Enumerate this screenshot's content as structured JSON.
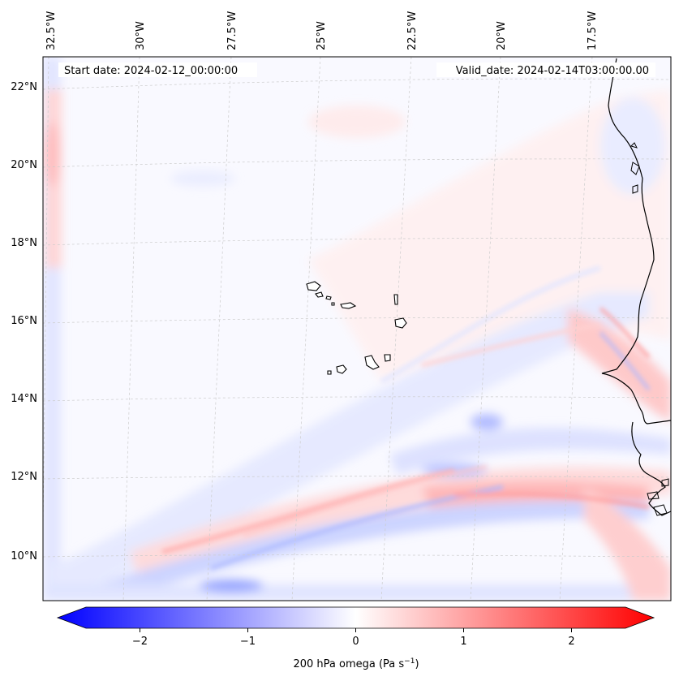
{
  "map": {
    "start_label": "Start date: 2024-02-12_00:00:00",
    "valid_label": "Valid_date: 2024-02-14T03:00:00.00",
    "lon_ticks": [
      "32.5°W",
      "30°W",
      "27.5°W",
      "25°W",
      "22.5°W",
      "20°W",
      "17.5°W"
    ],
    "lat_ticks": [
      "22°N",
      "20°N",
      "18°N",
      "16°N",
      "14°N",
      "12°N",
      "10°N"
    ],
    "colors": {
      "negative": "#0000ff",
      "neutral": "#ffffff",
      "positive": "#ff0000",
      "coast": "#000000"
    }
  },
  "colorbar": {
    "ticks": [
      "−2",
      "−1",
      "0",
      "1",
      "2"
    ],
    "tick_values": [
      -2,
      -1,
      0,
      1,
      2
    ],
    "range": [
      -2.75,
      2.75
    ],
    "label_main": "200 hPa omega (Pa s",
    "label_sup": "−1",
    "label_close": ")"
  }
}
